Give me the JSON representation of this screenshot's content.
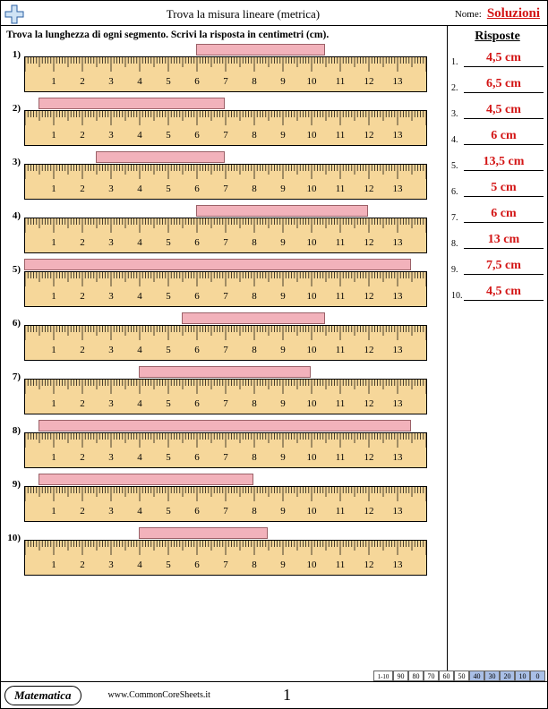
{
  "header": {
    "title": "Trova la misura lineare (metrica)",
    "name_label": "Nome:",
    "name_value": "Soluzioni"
  },
  "instruction": "Trova la lunghezza di ogni segmento. Scrivi la risposta in centimetri (cm).",
  "answers_title": "Risposte",
  "ruler": {
    "max_cm": 14,
    "background": "#f6d79a",
    "segment_color": "#f2b2bb",
    "segment_border": "#9b6168"
  },
  "problems": [
    {
      "num": "1)",
      "start_cm": 6.0,
      "end_cm": 10.5
    },
    {
      "num": "2)",
      "start_cm": 0.5,
      "end_cm": 7.0
    },
    {
      "num": "3)",
      "start_cm": 2.5,
      "end_cm": 7.0
    },
    {
      "num": "4)",
      "start_cm": 6.0,
      "end_cm": 12.0
    },
    {
      "num": "5)",
      "start_cm": 0.0,
      "end_cm": 13.5
    },
    {
      "num": "6)",
      "start_cm": 5.5,
      "end_cm": 10.5
    },
    {
      "num": "7)",
      "start_cm": 4.0,
      "end_cm": 10.0
    },
    {
      "num": "8)",
      "start_cm": 0.5,
      "end_cm": 13.5
    },
    {
      "num": "9)",
      "start_cm": 0.5,
      "end_cm": 8.0
    },
    {
      "num": "10)",
      "start_cm": 4.0,
      "end_cm": 8.5
    }
  ],
  "answers": [
    {
      "num": "1.",
      "val": "4,5 cm"
    },
    {
      "num": "2.",
      "val": "6,5 cm"
    },
    {
      "num": "3.",
      "val": "4,5 cm"
    },
    {
      "num": "4.",
      "val": "6 cm"
    },
    {
      "num": "5.",
      "val": "13,5 cm"
    },
    {
      "num": "6.",
      "val": "5 cm"
    },
    {
      "num": "7.",
      "val": "6 cm"
    },
    {
      "num": "8.",
      "val": "13 cm"
    },
    {
      "num": "9.",
      "val": "7,5 cm"
    },
    {
      "num": "10.",
      "val": "4,5 cm"
    }
  ],
  "footer": {
    "badge": "Matematica",
    "url": "www.CommonCoreSheets.it",
    "pagenum": "1",
    "score_label": "1-10",
    "scores": [
      "90",
      "80",
      "70",
      "60",
      "50",
      "40",
      "30",
      "20",
      "10",
      "0"
    ],
    "shaded_from_index": 5
  }
}
